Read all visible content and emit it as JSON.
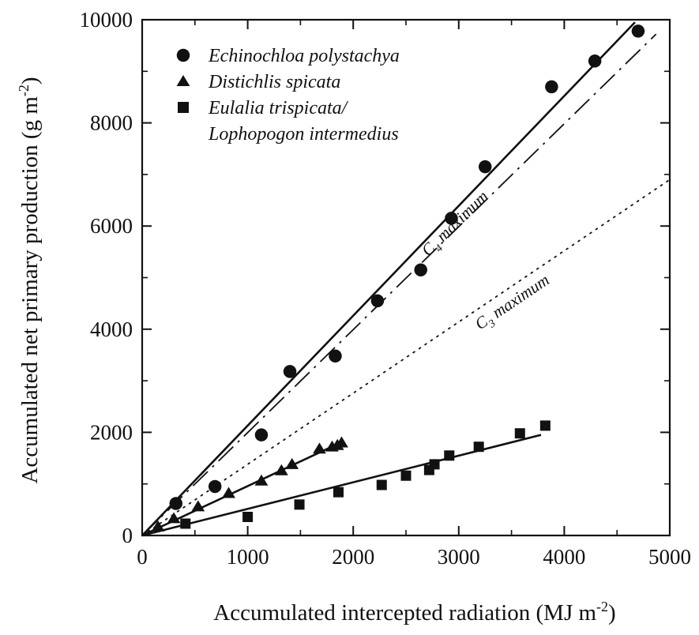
{
  "chart_data": {
    "type": "scatter",
    "xlabel": "Accumulated intercepted radiation (MJ m",
    "xlabel_sup": "-2",
    "xlabel_end": ")",
    "ylabel": "Accumulated net primary production (g m",
    "ylabel_sup": "-2",
    "ylabel_end": ")",
    "xlim": [
      0,
      5000
    ],
    "ylim": [
      0,
      10000
    ],
    "x_ticks": [
      0,
      1000,
      2000,
      3000,
      4000,
      5000
    ],
    "x_tick_labels": [
      "0",
      "1000",
      "2000",
      "3000",
      "4000",
      "5000"
    ],
    "y_ticks": [
      0,
      2000,
      4000,
      6000,
      8000,
      10000
    ],
    "y_tick_labels": [
      "0",
      "2000",
      "4000",
      "6000",
      "8000",
      "10000"
    ],
    "legend_position": "top-left",
    "series": [
      {
        "name": "Echinochloa polystachya",
        "marker": "circle",
        "color": "#111111",
        "points": [
          [
            320,
            620
          ],
          [
            690,
            950
          ],
          [
            1130,
            1950
          ],
          [
            1400,
            3180
          ],
          [
            1830,
            3480
          ],
          [
            2230,
            4550
          ],
          [
            2640,
            5150
          ],
          [
            2930,
            6150
          ],
          [
            3250,
            7150
          ],
          [
            3880,
            8700
          ],
          [
            4290,
            9200
          ],
          [
            4700,
            9780
          ]
        ],
        "fit": {
          "style": "solid",
          "from": [
            0,
            0
          ],
          "to": [
            4670,
            9950
          ]
        }
      },
      {
        "name": "Distichlis spicata",
        "marker": "triangle",
        "color": "#111111",
        "points": [
          [
            150,
            170
          ],
          [
            300,
            330
          ],
          [
            530,
            560
          ],
          [
            820,
            820
          ],
          [
            1130,
            1060
          ],
          [
            1320,
            1260
          ],
          [
            1420,
            1380
          ],
          [
            1680,
            1680
          ],
          [
            1800,
            1720
          ],
          [
            1850,
            1750
          ],
          [
            1890,
            1800
          ]
        ],
        "fit": {
          "style": "solid",
          "from": [
            0,
            0
          ],
          "to": [
            1900,
            1820
          ]
        }
      },
      {
        "name": "Eulalia trispicata/",
        "name_line2": "Lophopogon intermedius",
        "marker": "square",
        "color": "#111111",
        "points": [
          [
            410,
            230
          ],
          [
            1000,
            360
          ],
          [
            1490,
            600
          ],
          [
            1860,
            840
          ],
          [
            2270,
            980
          ],
          [
            2500,
            1160
          ],
          [
            2720,
            1270
          ],
          [
            2770,
            1380
          ],
          [
            2910,
            1550
          ],
          [
            3190,
            1720
          ],
          [
            3580,
            1980
          ],
          [
            3820,
            2130
          ]
        ],
        "fit": {
          "style": "solid",
          "from": [
            0,
            0
          ],
          "to": [
            3780,
            1950
          ]
        }
      }
    ],
    "reference_lines": [
      {
        "label": "C",
        "subscript": "4",
        "label_suffix": "maximum",
        "style": "dash-dot",
        "from": [
          0,
          0
        ],
        "to": [
          4870,
          9720
        ]
      },
      {
        "label": "C",
        "subscript": "3",
        "label_suffix": "maximum",
        "style": "dotted",
        "from": [
          0,
          0
        ],
        "to": [
          5000,
          6900
        ]
      }
    ]
  }
}
